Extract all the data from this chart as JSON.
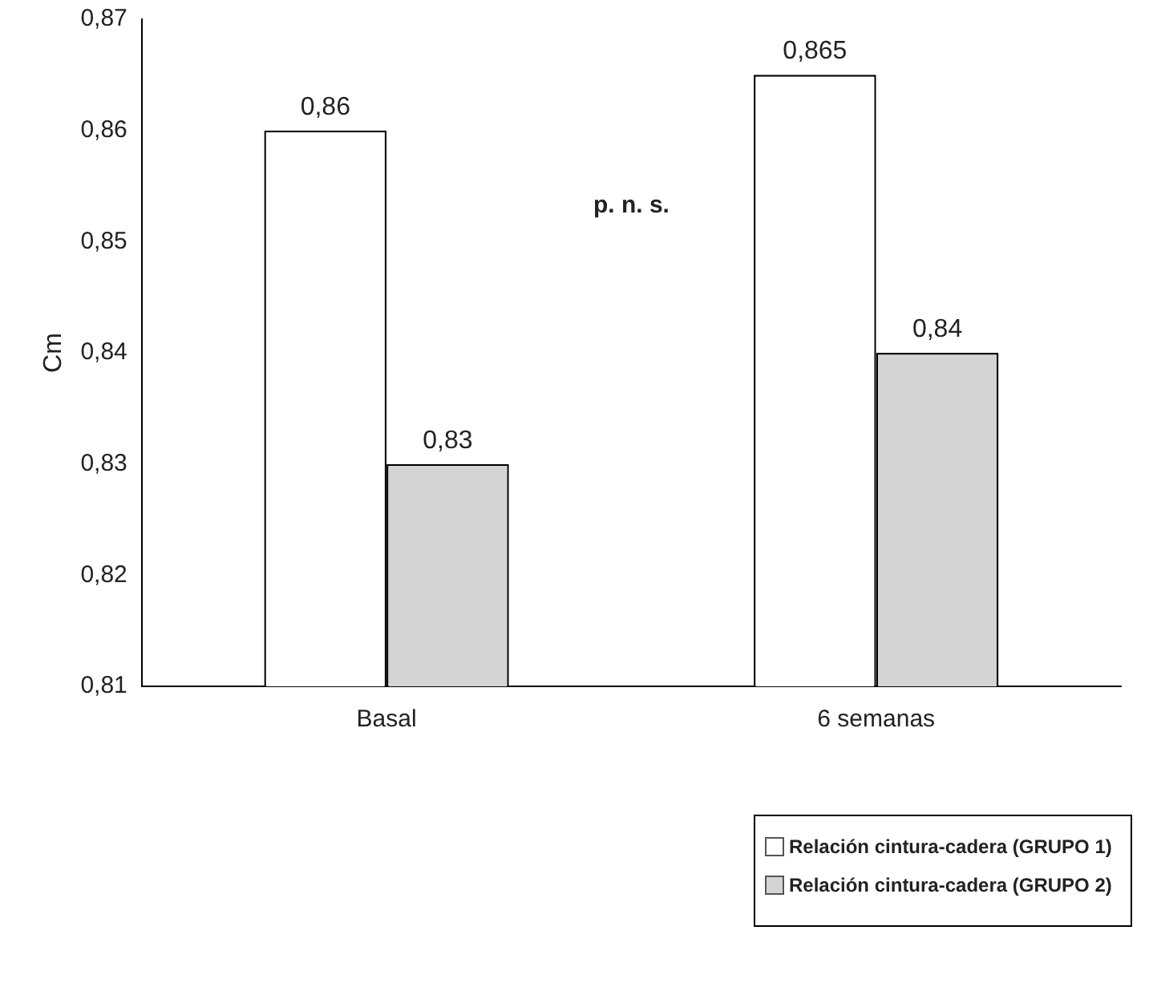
{
  "chart_data": {
    "type": "bar",
    "ylabel": "Cm",
    "categories": [
      "Basal",
      "6 semanas"
    ],
    "series": [
      {
        "name": "Relación cintura-cadera (GRUPO 1)",
        "color": "#ffffff",
        "values": [
          0.86,
          0.865
        ],
        "value_labels": [
          "0,86",
          "0,865"
        ]
      },
      {
        "name": "Relación cintura-cadera (GRUPO 2)",
        "color": "#d4d4d4",
        "values": [
          0.83,
          0.84
        ],
        "value_labels": [
          "0,83",
          "0,84"
        ]
      }
    ],
    "ylim": [
      0.81,
      0.87
    ],
    "yticks": [
      {
        "value": 0.81,
        "label": "0,81"
      },
      {
        "value": 0.82,
        "label": "0,82"
      },
      {
        "value": 0.83,
        "label": "0,83"
      },
      {
        "value": 0.84,
        "label": "0,84"
      },
      {
        "value": 0.85,
        "label": "0,85"
      },
      {
        "value": 0.86,
        "label": "0,86"
      },
      {
        "value": 0.87,
        "label": "0,87"
      }
    ],
    "annotations": [
      "p. n. s."
    ],
    "legend": "bottom right",
    "grid": false
  }
}
